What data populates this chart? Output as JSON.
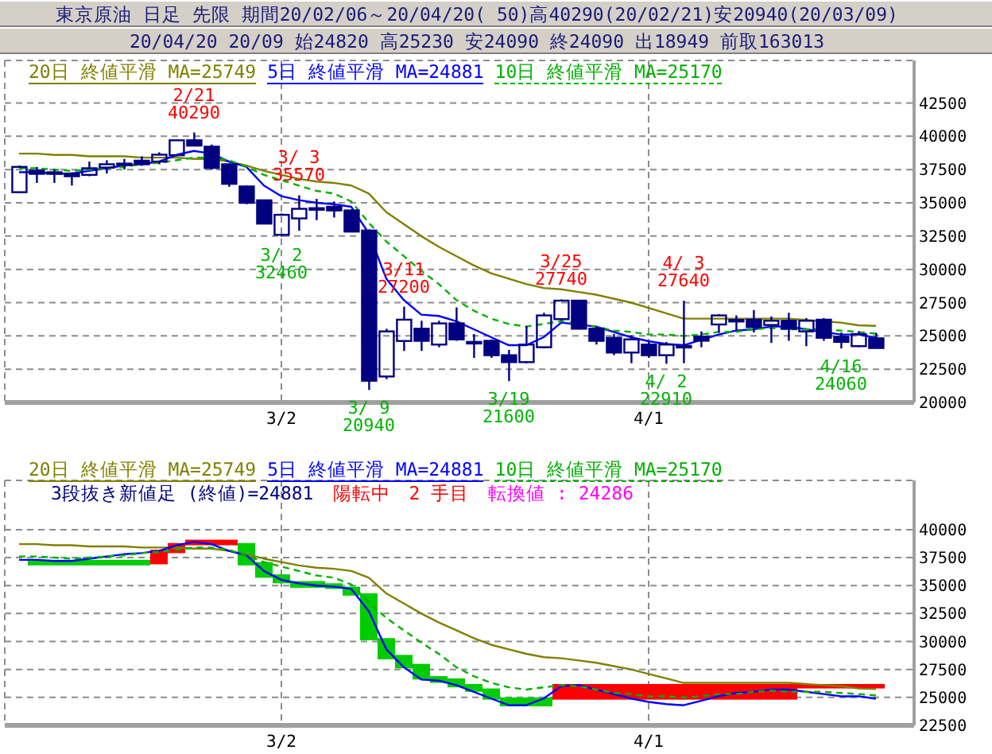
{
  "chart_data": [
    {
      "type": "candlestick",
      "title": "東京原油 日足 先限 期間20/02/06～20/04/20( 50)高40290(20/02/21)安20940(20/03/09)",
      "subtitle": "20/04/20 20/09 始24820 高25230 安24090 終24090 出18949 前取163013",
      "categories": [
        null,
        null,
        null,
        null,
        null,
        null,
        null,
        null,
        null,
        null,
        null,
        null,
        null,
        null,
        null,
        "3/2",
        null,
        null,
        null,
        null,
        null,
        null,
        null,
        null,
        null,
        null,
        null,
        null,
        null,
        null,
        null,
        null,
        null,
        null,
        null,
        null,
        "4/1",
        null,
        null,
        null,
        null,
        null,
        null,
        null,
        null,
        null,
        null,
        null,
        null,
        null
      ],
      "ohlc": [
        [
          35800,
          37800,
          35750,
          37700
        ],
        [
          37420,
          37700,
          36500,
          37180
        ],
        [
          37300,
          37500,
          36500,
          37250
        ],
        [
          37200,
          37300,
          36300,
          37000
        ],
        [
          37100,
          38100,
          37000,
          37600
        ],
        [
          37650,
          38200,
          37200,
          37900
        ],
        [
          37900,
          38300,
          37500,
          37950
        ],
        [
          38170,
          38500,
          37780,
          37900
        ],
        [
          38100,
          38800,
          37900,
          38620
        ],
        [
          38580,
          39750,
          38500,
          39700
        ],
        [
          39700,
          40290,
          39250,
          39300
        ],
        [
          39220,
          39380,
          37500,
          37620
        ],
        [
          37900,
          37950,
          36200,
          36430
        ],
        [
          36230,
          36300,
          34900,
          35000
        ],
        [
          35190,
          35200,
          33400,
          33440
        ],
        [
          32600,
          34200,
          32460,
          34100
        ],
        [
          33830,
          35570,
          32900,
          34550
        ],
        [
          34500,
          35300,
          33700,
          34600
        ],
        [
          34700,
          35100,
          33900,
          34430
        ],
        [
          34430,
          34500,
          32800,
          32840
        ],
        [
          32920,
          33000,
          20940,
          21630
        ],
        [
          21950,
          25540,
          21750,
          25340
        ],
        [
          24620,
          27200,
          23870,
          26220
        ],
        [
          25540,
          26140,
          23870,
          24630
        ],
        [
          24350,
          26140,
          24150,
          25940
        ],
        [
          25940,
          27140,
          24630,
          24740
        ],
        [
          24550,
          25140,
          23350,
          24540
        ],
        [
          24630,
          24740,
          23350,
          23550
        ],
        [
          23550,
          23950,
          21600,
          23030
        ],
        [
          23030,
          25740,
          22950,
          24350
        ],
        [
          24150,
          26740,
          24070,
          26540
        ],
        [
          26260,
          27740,
          26140,
          27650
        ],
        [
          27650,
          27700,
          25540,
          25540
        ],
        [
          25540,
          25740,
          24350,
          24630
        ],
        [
          24860,
          25140,
          23550,
          23750
        ],
        [
          23750,
          25040,
          22950,
          24740
        ],
        [
          24350,
          24550,
          23350,
          23550
        ],
        [
          23550,
          24550,
          22910,
          24350
        ],
        [
          24150,
          27640,
          22950,
          24250
        ],
        [
          24940,
          25340,
          24150,
          24640
        ],
        [
          25860,
          26640,
          25240,
          26540
        ],
        [
          26140,
          26540,
          25440,
          26200
        ],
        [
          26220,
          26940,
          25260,
          25660
        ],
        [
          25820,
          26460,
          24470,
          26140
        ],
        [
          26140,
          26740,
          24630,
          25540
        ],
        [
          25340,
          26340,
          24230,
          26140
        ],
        [
          26220,
          26340,
          24630,
          24860
        ],
        [
          24940,
          25260,
          24060,
          24550
        ],
        [
          24230,
          25340,
          24150,
          25140
        ],
        [
          24820,
          25230,
          24090,
          24090
        ]
      ],
      "color": "#000080",
      "series": [
        {
          "type": "line",
          "name": "20日 終値平滑 MA=25749",
          "color": "#808000",
          "values": [
            38700,
            38700,
            38600,
            38600,
            38500,
            38500,
            38500,
            38400,
            38400,
            38400,
            38300,
            38300,
            38100,
            37800,
            37400,
            37100,
            36800,
            36600,
            36500,
            36300,
            35700,
            34300,
            33400,
            32500,
            31700,
            31000,
            30300,
            29700,
            29300,
            28900,
            28600,
            28500,
            28300,
            28100,
            27800,
            27500,
            27100,
            26700,
            26300,
            26300,
            26300,
            26300,
            26300,
            26300,
            26300,
            26200,
            26100,
            26000,
            25800,
            25749
          ]
        },
        {
          "type": "line",
          "name": "5日 終値平滑 MA=24881",
          "color": "#0000ff",
          "values": [
            37300,
            37300,
            37200,
            37200,
            37400,
            37600,
            37800,
            37900,
            38100,
            38600,
            38900,
            38700,
            38100,
            37700,
            36300,
            35500,
            35200,
            35000,
            34900,
            34700,
            32700,
            29300,
            27700,
            26600,
            26500,
            26100,
            25500,
            24900,
            24300,
            24300,
            24900,
            26000,
            null,
            25700,
            25300,
            24900,
            24600,
            24400,
            24300,
            24700,
            25100,
            25400,
            25500,
            25700,
            25700,
            25500,
            25300,
            25100,
            25100,
            24881
          ]
        },
        {
          "type": "line",
          "name": "10日 終値平滑 MA=25170",
          "color": "#00b000",
          "line_style": "dashed",
          "values": [
            37600,
            37600,
            37500,
            37400,
            37500,
            37600,
            37700,
            37900,
            38000,
            38200,
            38400,
            38400,
            38200,
            37700,
            37100,
            36700,
            36300,
            35900,
            35700,
            35100,
            33500,
            32100,
            31000,
            29900,
            28900,
            27700,
            26900,
            26300,
            25900,
            25700,
            25900,
            26100,
            null,
            25700,
            25400,
            25300,
            25100,
            25100,
            25000,
            25100,
            25300,
            25300,
            25500,
            25600,
            25500,
            25500,
            25500,
            25400,
            25300,
            25170
          ]
        }
      ],
      "ylim": [
        20000,
        45700
      ],
      "yticks": [
        20000,
        22500,
        25000,
        27500,
        30000,
        32500,
        35000,
        37500,
        40000,
        42500
      ],
      "grid": true,
      "legend": "top left",
      "annotations": [
        {
          "text": "2/21\n40290",
          "y": 40290
        },
        {
          "text": "3/ 3\n35570",
          "y": 35570
        },
        {
          "text": "3/ 2\n32460",
          "y": 32460
        },
        {
          "text": "3/ 9\n20940",
          "y": 20940
        },
        {
          "text": "3/11\n27200",
          "y": 27200
        },
        {
          "text": "3/19\n21600",
          "y": 21600
        },
        {
          "text": "3/25\n27740",
          "y": 27740
        },
        {
          "text": "4/ 2\n22910",
          "y": 22910
        },
        {
          "text": "4/ 3\n27640",
          "y": 27640
        },
        {
          "text": "4/16\n24060",
          "y": 24060
        }
      ]
    },
    {
      "type": "bar",
      "categories": [
        null,
        null,
        null,
        null,
        null,
        null,
        null,
        null,
        null,
        null,
        null,
        null,
        null,
        null,
        null,
        "3/2",
        null,
        null,
        null,
        null,
        null,
        null,
        null,
        null,
        null,
        null,
        null,
        null,
        null,
        null,
        null,
        null,
        null,
        null,
        null,
        null,
        "4/1",
        null,
        null,
        null,
        null,
        null,
        null,
        null,
        null,
        null,
        null,
        null,
        null,
        null
      ],
      "base": [
        null,
        36800,
        36800,
        36800,
        36800,
        36800,
        36800,
        36800,
        36900,
        37900,
        38600,
        38600,
        38600,
        36800,
        35700,
        35200,
        34800,
        34800,
        34700,
        34100,
        30100,
        28400,
        27600,
        26600,
        26300,
        25900,
        25500,
        24800,
        24200,
        24200,
        24200,
        24800,
        24800,
        24800,
        24800,
        24800,
        24800,
        24800,
        24800,
        24800,
        24800,
        24800,
        24800,
        24800,
        24800,
        25800,
        25800,
        25800,
        25800,
        25800
      ],
      "values": [
        null,
        500,
        500,
        500,
        500,
        500,
        500,
        500,
        1300,
        900,
        500,
        500,
        500,
        2000,
        1400,
        800,
        600,
        600,
        500,
        800,
        4200,
        1900,
        1200,
        1400,
        600,
        800,
        700,
        1000,
        800,
        800,
        800,
        1400,
        1400,
        1400,
        1400,
        1400,
        1400,
        1400,
        1400,
        1400,
        1400,
        1400,
        1400,
        1400,
        1400,
        400,
        400,
        400,
        400,
        400
      ],
      "colors": [
        null,
        "#00cc00",
        "#00cc00",
        "#00cc00",
        "#00cc00",
        "#00cc00",
        "#00cc00",
        "#00cc00",
        "#ff0000",
        "#ff0000",
        "#ff0000",
        "#ff0000",
        "#ff0000",
        "#00cc00",
        "#00cc00",
        "#00cc00",
        "#00cc00",
        "#00cc00",
        "#00cc00",
        "#00cc00",
        "#00cc00",
        "#00cc00",
        "#00cc00",
        "#00cc00",
        "#00cc00",
        "#00cc00",
        "#00cc00",
        "#00cc00",
        "#00cc00",
        "#00cc00",
        "#00cc00",
        "#ff0000",
        "#ff0000",
        "#ff0000",
        "#ff0000",
        "#ff0000",
        "#ff0000",
        "#ff0000",
        "#ff0000",
        "#ff0000",
        "#ff0000",
        "#ff0000",
        "#ff0000",
        "#ff0000",
        "#ff0000",
        "#ff0000",
        "#ff0000",
        "#ff0000",
        "#ff0000",
        "#ff0000"
      ],
      "series": [
        {
          "type": "line",
          "name": "20日 終値平滑 MA=25749",
          "color": "#808000",
          "values": [
            38700,
            38700,
            38600,
            38600,
            38500,
            38500,
            38500,
            38400,
            38400,
            38400,
            38300,
            38300,
            38100,
            37800,
            37400,
            37100,
            36800,
            36600,
            36500,
            36300,
            35700,
            34300,
            33400,
            32500,
            31700,
            31000,
            30300,
            29700,
            29300,
            28900,
            28600,
            28500,
            28300,
            28100,
            27800,
            27500,
            27100,
            26700,
            26300,
            26300,
            26300,
            26300,
            26300,
            26300,
            26300,
            26200,
            26100,
            26000,
            25800,
            25749
          ]
        },
        {
          "type": "line",
          "name": "5日 終値平滑 MA=24881",
          "color": "#0000ff",
          "values": [
            37300,
            37300,
            37200,
            37200,
            37400,
            37600,
            37800,
            37900,
            38100,
            38600,
            38900,
            38700,
            38100,
            37700,
            36300,
            35500,
            35200,
            35000,
            34900,
            34700,
            32700,
            29300,
            27700,
            26600,
            26500,
            26100,
            25500,
            24900,
            24300,
            24300,
            24900,
            26000,
            26100,
            25700,
            25300,
            24900,
            24600,
            24400,
            24300,
            24700,
            25100,
            25400,
            25500,
            25700,
            25700,
            25500,
            25300,
            25100,
            25100,
            24881
          ]
        },
        {
          "type": "line",
          "name": "10日 終値平滑 MA=25170",
          "color": "#00b000",
          "line_style": "dashed",
          "values": [
            37600,
            37600,
            37500,
            37400,
            37500,
            37600,
            37700,
            37900,
            38000,
            38200,
            38400,
            38400,
            38200,
            37700,
            37100,
            36700,
            36300,
            35900,
            35700,
            35100,
            33500,
            32100,
            31000,
            29900,
            28900,
            27700,
            26900,
            26300,
            25900,
            25700,
            25900,
            26100,
            26000,
            25700,
            25400,
            25300,
            25100,
            25100,
            25000,
            25100,
            25300,
            25300,
            25500,
            25600,
            25500,
            25500,
            25500,
            25400,
            25300,
            25170
          ]
        }
      ],
      "ylim": [
        22500,
        44400
      ],
      "yticks": [
        22500,
        25000,
        27500,
        30000,
        32500,
        35000,
        37500,
        40000
      ],
      "grid": true,
      "legend": "top left",
      "annotations": [
        "3段抜き新値足 (終値)=24881",
        "陽転中",
        "2 手目",
        "転換値 : 24286"
      ]
    }
  ]
}
